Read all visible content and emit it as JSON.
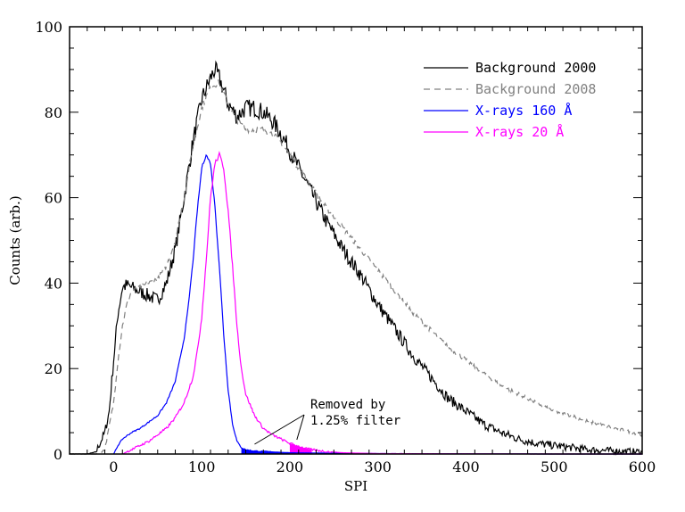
{
  "chart_data": {
    "type": "line",
    "title": "",
    "xlabel": "SPI",
    "ylabel": "Counts (arb.)",
    "xlim": [
      -50,
      600
    ],
    "ylim": [
      0,
      100
    ],
    "xticks_major": [
      0,
      100,
      200,
      300,
      400,
      500,
      600
    ],
    "xticks_minor_step": 20,
    "yticks_major": [
      0,
      20,
      40,
      60,
      80,
      100
    ],
    "yticks_minor_step": 5,
    "grid": false,
    "legend_position": "top-right",
    "series": [
      {
        "name": "Background 2000",
        "color": "#000000",
        "style": "solid",
        "x": [
          -50,
          -30,
          -20,
          -10,
          -5,
          0,
          5,
          10,
          15,
          20,
          30,
          40,
          50,
          60,
          70,
          80,
          90,
          100,
          110,
          115,
          120,
          130,
          140,
          150,
          160,
          170,
          180,
          190,
          200,
          220,
          240,
          260,
          280,
          300,
          320,
          340,
          360,
          380,
          400,
          420,
          440,
          460,
          480,
          500,
          520,
          540,
          560,
          580,
          600
        ],
        "y": [
          0,
          0,
          0.5,
          5,
          10,
          22,
          33,
          39,
          39.5,
          39,
          38,
          37,
          36,
          40,
          48,
          60,
          73,
          83,
          88,
          90,
          88,
          82,
          79,
          81,
          81,
          80,
          78,
          75,
          71,
          63,
          55,
          48,
          42,
          35,
          29,
          23,
          18,
          13,
          10,
          7,
          5,
          3.5,
          2.5,
          2,
          1.5,
          1,
          0.8,
          0.6,
          0.5
        ]
      },
      {
        "name": "Background 2008",
        "color": "#808080",
        "style": "dashed",
        "x": [
          -50,
          -20,
          -10,
          0,
          5,
          10,
          15,
          20,
          30,
          40,
          50,
          60,
          70,
          80,
          90,
          100,
          110,
          120,
          130,
          140,
          150,
          160,
          170,
          180,
          190,
          200,
          220,
          240,
          260,
          280,
          300,
          320,
          340,
          360,
          380,
          400,
          420,
          440,
          460,
          480,
          500,
          520,
          540,
          560,
          580,
          600
        ],
        "y": [
          0,
          0,
          1,
          12,
          22,
          30,
          35,
          38,
          39,
          40,
          41,
          44,
          50,
          60,
          72,
          81,
          86,
          87,
          82,
          78,
          76,
          76,
          76,
          75,
          73,
          70,
          64,
          58,
          53,
          48,
          43,
          38,
          33,
          29,
          25,
          22,
          19,
          16,
          14,
          12,
          10,
          9,
          7.5,
          6.5,
          5.5,
          4.5
        ]
      },
      {
        "name": "X-rays 160 Å",
        "color": "#0000ff",
        "style": "solid",
        "x": [
          0,
          5,
          10,
          20,
          30,
          40,
          50,
          60,
          70,
          80,
          85,
          90,
          95,
          100,
          105,
          110,
          115,
          120,
          125,
          130,
          135,
          140,
          145,
          150,
          160,
          180,
          200,
          250,
          300,
          400,
          500,
          600
        ],
        "y": [
          0,
          2,
          3.5,
          5,
          6,
          7.5,
          9,
          12,
          17,
          27,
          35,
          45,
          57,
          67,
          70,
          68,
          58,
          44,
          28,
          15,
          7,
          3,
          1.5,
          1,
          0.7,
          0.5,
          0.3,
          0.2,
          0.1,
          0.05,
          0,
          0
        ]
      },
      {
        "name": "X-rays 20 Å",
        "color": "#ff00ff",
        "style": "solid",
        "x": [
          10,
          20,
          30,
          40,
          50,
          60,
          70,
          80,
          90,
          95,
          100,
          105,
          110,
          115,
          120,
          125,
          130,
          135,
          140,
          145,
          150,
          160,
          170,
          180,
          190,
          200,
          210,
          220,
          240,
          260,
          300,
          400,
          500,
          600
        ],
        "y": [
          0,
          1,
          2,
          3,
          4.5,
          6,
          8.5,
          12,
          18,
          24,
          32,
          45,
          60,
          68,
          70,
          67,
          57,
          44,
          30,
          20,
          14,
          9,
          6,
          4.5,
          3.5,
          2.5,
          1.8,
          1.2,
          0.6,
          0.3,
          0.1,
          0.05,
          0,
          0
        ]
      }
    ],
    "annotations": [
      {
        "text_lines": [
          "Removed by",
          "1.25% filter"
        ],
        "points_to_x": [
          160,
          210
        ]
      }
    ]
  }
}
